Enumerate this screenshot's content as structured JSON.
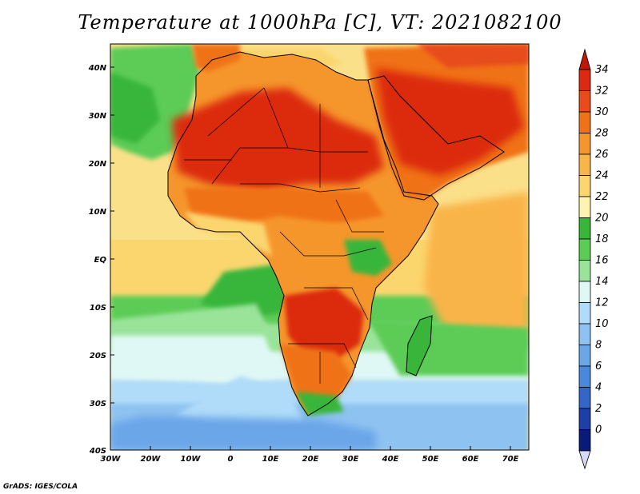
{
  "title": "Temperature at 1000hPa [C], VT: 2021082100",
  "credit": "GrADS: IGES/COLA",
  "map": {
    "lat_labels": [
      "40N",
      "30N",
      "20N",
      "10N",
      "EQ",
      "10S",
      "20S",
      "30S",
      "40S"
    ],
    "lon_labels": [
      "30W",
      "20W",
      "10W",
      "0",
      "10E",
      "20E",
      "30E",
      "40E",
      "50E",
      "60E",
      "70E"
    ],
    "lat_range": [
      -40,
      45
    ],
    "lon_range": [
      -30,
      75
    ]
  },
  "colorbar": {
    "labels": [
      "34",
      "32",
      "30",
      "28",
      "26",
      "24",
      "22",
      "20",
      "18",
      "16",
      "14",
      "12",
      "10",
      "8",
      "6",
      "4",
      "2",
      "0"
    ],
    "colors": [
      "#dc2a10",
      "#e84c1c",
      "#f07218",
      "#f5962c",
      "#f9b44a",
      "#fbd66e",
      "#fcf4b0",
      "#39b63a",
      "#5ccc56",
      "#9ae49a",
      "#dff8f5",
      "#b0dcf9",
      "#8ec2f1",
      "#6aa6e8",
      "#4a88de",
      "#3466c8",
      "#1e3ea8",
      "#0a1a78"
    ],
    "arrow_top_color": "#c01808",
    "arrow_bottom_color": "#d8d8f8"
  }
}
